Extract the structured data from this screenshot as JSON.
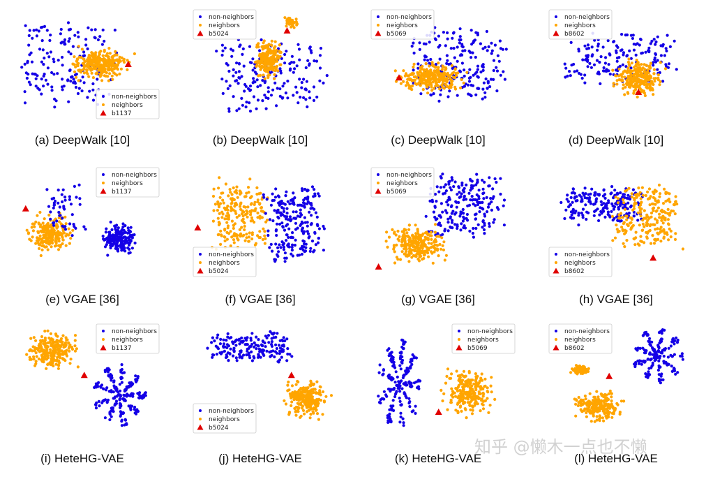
{
  "colors": {
    "non_neighbors": "#1400e6",
    "neighbors": "#ffa500",
    "target": "#e00000",
    "background": "#ffffff"
  },
  "legend_labels": [
    "non-neighbors",
    "neighbors"
  ],
  "watermark": "知乎 @懒木一点也不懒",
  "chart_data": [
    {
      "type": "scatter",
      "title": "(a) DeepWalk [10]",
      "target": "b1137",
      "legend": "bottom-right",
      "clusters": [
        {
          "series": "non-neighbors",
          "shape": "spread",
          "cx": 0.35,
          "cy": 0.5,
          "sx": 0.35,
          "sy": 0.4,
          "n": 160
        },
        {
          "series": "neighbors",
          "shape": "blob",
          "cx": 0.6,
          "cy": 0.5,
          "sx": 0.25,
          "sy": 0.18,
          "n": 260
        }
      ],
      "target_pos": [
        0.78,
        0.5
      ]
    },
    {
      "type": "scatter",
      "title": "(b) DeepWalk [10]",
      "target": "b5024",
      "legend": "top-left",
      "clusters": [
        {
          "series": "non-neighbors",
          "shape": "spread",
          "cx": 0.55,
          "cy": 0.6,
          "sx": 0.4,
          "sy": 0.35,
          "n": 180
        },
        {
          "series": "neighbors",
          "shape": "blob",
          "cx": 0.52,
          "cy": 0.45,
          "sx": 0.12,
          "sy": 0.22,
          "n": 220
        },
        {
          "series": "neighbors",
          "shape": "blob",
          "cx": 0.68,
          "cy": 0.12,
          "sx": 0.06,
          "sy": 0.08,
          "n": 40
        }
      ],
      "target_pos": [
        0.65,
        0.2
      ]
    },
    {
      "type": "scatter",
      "title": "(c) DeepWalk [10]",
      "target": "b5069",
      "legend": "top-left",
      "clusters": [
        {
          "series": "non-neighbors",
          "shape": "spread",
          "cx": 0.6,
          "cy": 0.5,
          "sx": 0.35,
          "sy": 0.35,
          "n": 200
        },
        {
          "series": "neighbors",
          "shape": "blob",
          "cx": 0.42,
          "cy": 0.62,
          "sx": 0.28,
          "sy": 0.16,
          "n": 260
        }
      ],
      "target_pos": [
        0.2,
        0.62
      ]
    },
    {
      "type": "scatter",
      "title": "(d) DeepWalk [10]",
      "target": "b8602",
      "legend": "top-left",
      "clusters": [
        {
          "series": "non-neighbors",
          "shape": "spread",
          "cx": 0.5,
          "cy": 0.45,
          "sx": 0.4,
          "sy": 0.25,
          "n": 170
        },
        {
          "series": "neighbors",
          "shape": "blob",
          "cx": 0.62,
          "cy": 0.62,
          "sx": 0.2,
          "sy": 0.2,
          "n": 260
        }
      ],
      "target_pos": [
        0.62,
        0.75
      ]
    },
    {
      "type": "scatter",
      "title": "(e) VGAE [36]",
      "target": "b1137",
      "legend": "top-right",
      "clusters": [
        {
          "series": "neighbors",
          "shape": "blob",
          "cx": 0.25,
          "cy": 0.6,
          "sx": 0.18,
          "sy": 0.22,
          "n": 230
        },
        {
          "series": "non-neighbors",
          "shape": "blob",
          "cx": 0.72,
          "cy": 0.65,
          "sx": 0.15,
          "sy": 0.18,
          "n": 180
        },
        {
          "series": "non-neighbors",
          "shape": "spread",
          "cx": 0.35,
          "cy": 0.4,
          "sx": 0.15,
          "sy": 0.25,
          "n": 50
        }
      ],
      "target_pos": [
        0.08,
        0.38
      ]
    },
    {
      "type": "scatter",
      "title": "(f) VGAE [36]",
      "target": "b5024",
      "legend": "bottom-left",
      "clusters": [
        {
          "series": "neighbors",
          "shape": "spread",
          "cx": 0.32,
          "cy": 0.45,
          "sx": 0.2,
          "sy": 0.35,
          "n": 210
        },
        {
          "series": "non-neighbors",
          "shape": "spread",
          "cx": 0.7,
          "cy": 0.5,
          "sx": 0.22,
          "sy": 0.38,
          "n": 220
        }
      ],
      "target_pos": [
        0.04,
        0.55
      ]
    },
    {
      "type": "scatter",
      "title": "(g) VGAE [36]",
      "target": "b5069",
      "legend": "top-left",
      "clusters": [
        {
          "series": "non-neighbors",
          "shape": "spread",
          "cx": 0.65,
          "cy": 0.35,
          "sx": 0.28,
          "sy": 0.3,
          "n": 210
        },
        {
          "series": "neighbors",
          "shape": "blob",
          "cx": 0.32,
          "cy": 0.7,
          "sx": 0.25,
          "sy": 0.2,
          "n": 260
        }
      ],
      "target_pos": [
        0.06,
        0.9
      ]
    },
    {
      "type": "scatter",
      "title": "(h) VGAE [36]",
      "target": "b8602",
      "legend": "bottom-left",
      "clusters": [
        {
          "series": "non-neighbors",
          "shape": "spread",
          "cx": 0.38,
          "cy": 0.35,
          "sx": 0.3,
          "sy": 0.18,
          "n": 190
        },
        {
          "series": "neighbors",
          "shape": "spread",
          "cx": 0.68,
          "cy": 0.45,
          "sx": 0.25,
          "sy": 0.3,
          "n": 230
        }
      ],
      "target_pos": [
        0.72,
        0.82
      ]
    },
    {
      "type": "scatter",
      "title": "(i) HeteHG-VAE",
      "target": "b1137",
      "legend": "top-right",
      "clusters": [
        {
          "series": "neighbors",
          "shape": "blob",
          "cx": 0.26,
          "cy": 0.25,
          "sx": 0.22,
          "sy": 0.2,
          "n": 240
        },
        {
          "series": "non-neighbors",
          "shape": "star",
          "cx": 0.72,
          "cy": 0.65,
          "sx": 0.18,
          "sy": 0.28,
          "n": 200
        }
      ],
      "target_pos": [
        0.48,
        0.47
      ]
    },
    {
      "type": "scatter",
      "title": "(j) HeteHG-VAE",
      "target": "b5024",
      "legend": "bottom-left",
      "clusters": [
        {
          "series": "non-neighbors",
          "shape": "spread",
          "cx": 0.4,
          "cy": 0.22,
          "sx": 0.3,
          "sy": 0.15,
          "n": 180
        },
        {
          "series": "neighbors",
          "shape": "blob",
          "cx": 0.78,
          "cy": 0.68,
          "sx": 0.18,
          "sy": 0.2,
          "n": 240
        }
      ],
      "target_pos": [
        0.68,
        0.47
      ]
    },
    {
      "type": "scatter",
      "title": "(k) HeteHG-VAE",
      "target": "b5069",
      "legend": "top-right",
      "clusters": [
        {
          "series": "non-neighbors",
          "shape": "star",
          "cx": 0.2,
          "cy": 0.55,
          "sx": 0.15,
          "sy": 0.4,
          "n": 200
        },
        {
          "series": "neighbors",
          "shape": "blob",
          "cx": 0.68,
          "cy": 0.62,
          "sx": 0.22,
          "sy": 0.25,
          "n": 240
        }
      ],
      "target_pos": [
        0.47,
        0.8
      ]
    },
    {
      "type": "scatter",
      "title": "(l) HeteHG-VAE",
      "target": "b8602",
      "legend": "top-left",
      "clusters": [
        {
          "series": "non-neighbors",
          "shape": "star",
          "cx": 0.75,
          "cy": 0.3,
          "sx": 0.18,
          "sy": 0.25,
          "n": 180
        },
        {
          "series": "neighbors",
          "shape": "blob",
          "cx": 0.34,
          "cy": 0.75,
          "sx": 0.22,
          "sy": 0.18,
          "n": 220
        },
        {
          "series": "neighbors",
          "shape": "blob",
          "cx": 0.22,
          "cy": 0.42,
          "sx": 0.07,
          "sy": 0.06,
          "n": 60
        }
      ],
      "target_pos": [
        0.42,
        0.48
      ]
    }
  ]
}
